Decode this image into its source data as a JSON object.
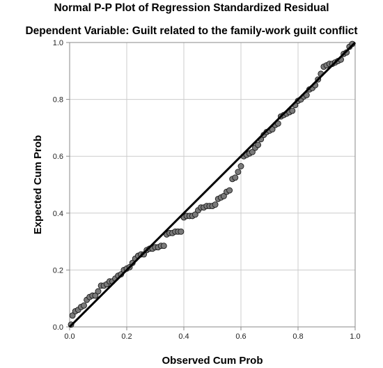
{
  "chart_data": {
    "type": "scatter",
    "title": "Normal P-P Plot of Regression Standardized Residual",
    "subtitle": "Dependent Variable: Guilt related to the family-work guilt conflict",
    "xlabel": "Observed Cum Prob",
    "ylabel": "Expected Cum Prob",
    "xlim": [
      0,
      1
    ],
    "ylim": [
      0,
      1
    ],
    "xticks": [
      "0.0",
      "0.2",
      "0.4",
      "0.6",
      "0.8",
      "1.0"
    ],
    "yticks": [
      "0.0",
      "0.2",
      "0.4",
      "0.6",
      "0.8",
      "1.0"
    ],
    "grid": true,
    "reference_line": [
      [
        0,
        0
      ],
      [
        1,
        1
      ]
    ],
    "points": [
      [
        0.005,
        0.008
      ],
      [
        0.01,
        0.04
      ],
      [
        0.02,
        0.055
      ],
      [
        0.03,
        0.06
      ],
      [
        0.04,
        0.07
      ],
      [
        0.05,
        0.075
      ],
      [
        0.06,
        0.095
      ],
      [
        0.07,
        0.105
      ],
      [
        0.08,
        0.11
      ],
      [
        0.09,
        0.11
      ],
      [
        0.1,
        0.125
      ],
      [
        0.11,
        0.145
      ],
      [
        0.12,
        0.145
      ],
      [
        0.13,
        0.15
      ],
      [
        0.14,
        0.16
      ],
      [
        0.15,
        0.16
      ],
      [
        0.16,
        0.17
      ],
      [
        0.17,
        0.18
      ],
      [
        0.18,
        0.185
      ],
      [
        0.19,
        0.2
      ],
      [
        0.2,
        0.205
      ],
      [
        0.21,
        0.21
      ],
      [
        0.22,
        0.225
      ],
      [
        0.23,
        0.24
      ],
      [
        0.24,
        0.25
      ],
      [
        0.25,
        0.255
      ],
      [
        0.26,
        0.255
      ],
      [
        0.27,
        0.27
      ],
      [
        0.28,
        0.275
      ],
      [
        0.29,
        0.275
      ],
      [
        0.3,
        0.28
      ],
      [
        0.31,
        0.28
      ],
      [
        0.32,
        0.285
      ],
      [
        0.33,
        0.285
      ],
      [
        0.34,
        0.325
      ],
      [
        0.35,
        0.33
      ],
      [
        0.36,
        0.33
      ],
      [
        0.37,
        0.335
      ],
      [
        0.38,
        0.335
      ],
      [
        0.39,
        0.335
      ],
      [
        0.4,
        0.385
      ],
      [
        0.41,
        0.39
      ],
      [
        0.42,
        0.39
      ],
      [
        0.43,
        0.39
      ],
      [
        0.44,
        0.395
      ],
      [
        0.45,
        0.41
      ],
      [
        0.46,
        0.42
      ],
      [
        0.47,
        0.42
      ],
      [
        0.48,
        0.425
      ],
      [
        0.49,
        0.425
      ],
      [
        0.5,
        0.425
      ],
      [
        0.51,
        0.43
      ],
      [
        0.52,
        0.45
      ],
      [
        0.53,
        0.455
      ],
      [
        0.54,
        0.46
      ],
      [
        0.55,
        0.475
      ],
      [
        0.56,
        0.48
      ],
      [
        0.57,
        0.52
      ],
      [
        0.58,
        0.525
      ],
      [
        0.59,
        0.545
      ],
      [
        0.6,
        0.565
      ],
      [
        0.61,
        0.6
      ],
      [
        0.62,
        0.605
      ],
      [
        0.63,
        0.61
      ],
      [
        0.64,
        0.615
      ],
      [
        0.65,
        0.63
      ],
      [
        0.66,
        0.64
      ],
      [
        0.67,
        0.66
      ],
      [
        0.68,
        0.675
      ],
      [
        0.69,
        0.685
      ],
      [
        0.7,
        0.69
      ],
      [
        0.71,
        0.695
      ],
      [
        0.72,
        0.71
      ],
      [
        0.73,
        0.715
      ],
      [
        0.74,
        0.74
      ],
      [
        0.75,
        0.745
      ],
      [
        0.76,
        0.75
      ],
      [
        0.77,
        0.755
      ],
      [
        0.78,
        0.76
      ],
      [
        0.79,
        0.78
      ],
      [
        0.8,
        0.795
      ],
      [
        0.81,
        0.8
      ],
      [
        0.82,
        0.81
      ],
      [
        0.83,
        0.815
      ],
      [
        0.84,
        0.835
      ],
      [
        0.85,
        0.84
      ],
      [
        0.86,
        0.85
      ],
      [
        0.87,
        0.87
      ],
      [
        0.88,
        0.89
      ],
      [
        0.89,
        0.915
      ],
      [
        0.9,
        0.92
      ],
      [
        0.91,
        0.925
      ],
      [
        0.92,
        0.925
      ],
      [
        0.93,
        0.93
      ],
      [
        0.94,
        0.935
      ],
      [
        0.95,
        0.94
      ],
      [
        0.96,
        0.96
      ],
      [
        0.97,
        0.965
      ],
      [
        0.98,
        0.985
      ],
      [
        0.99,
        0.995
      ]
    ],
    "colors": {
      "point_fill": "#7a7a7a",
      "point_stroke": "#1a1a1a",
      "line": "#000000",
      "grid": "#cccccc",
      "frame": "#8a8a8a"
    }
  }
}
